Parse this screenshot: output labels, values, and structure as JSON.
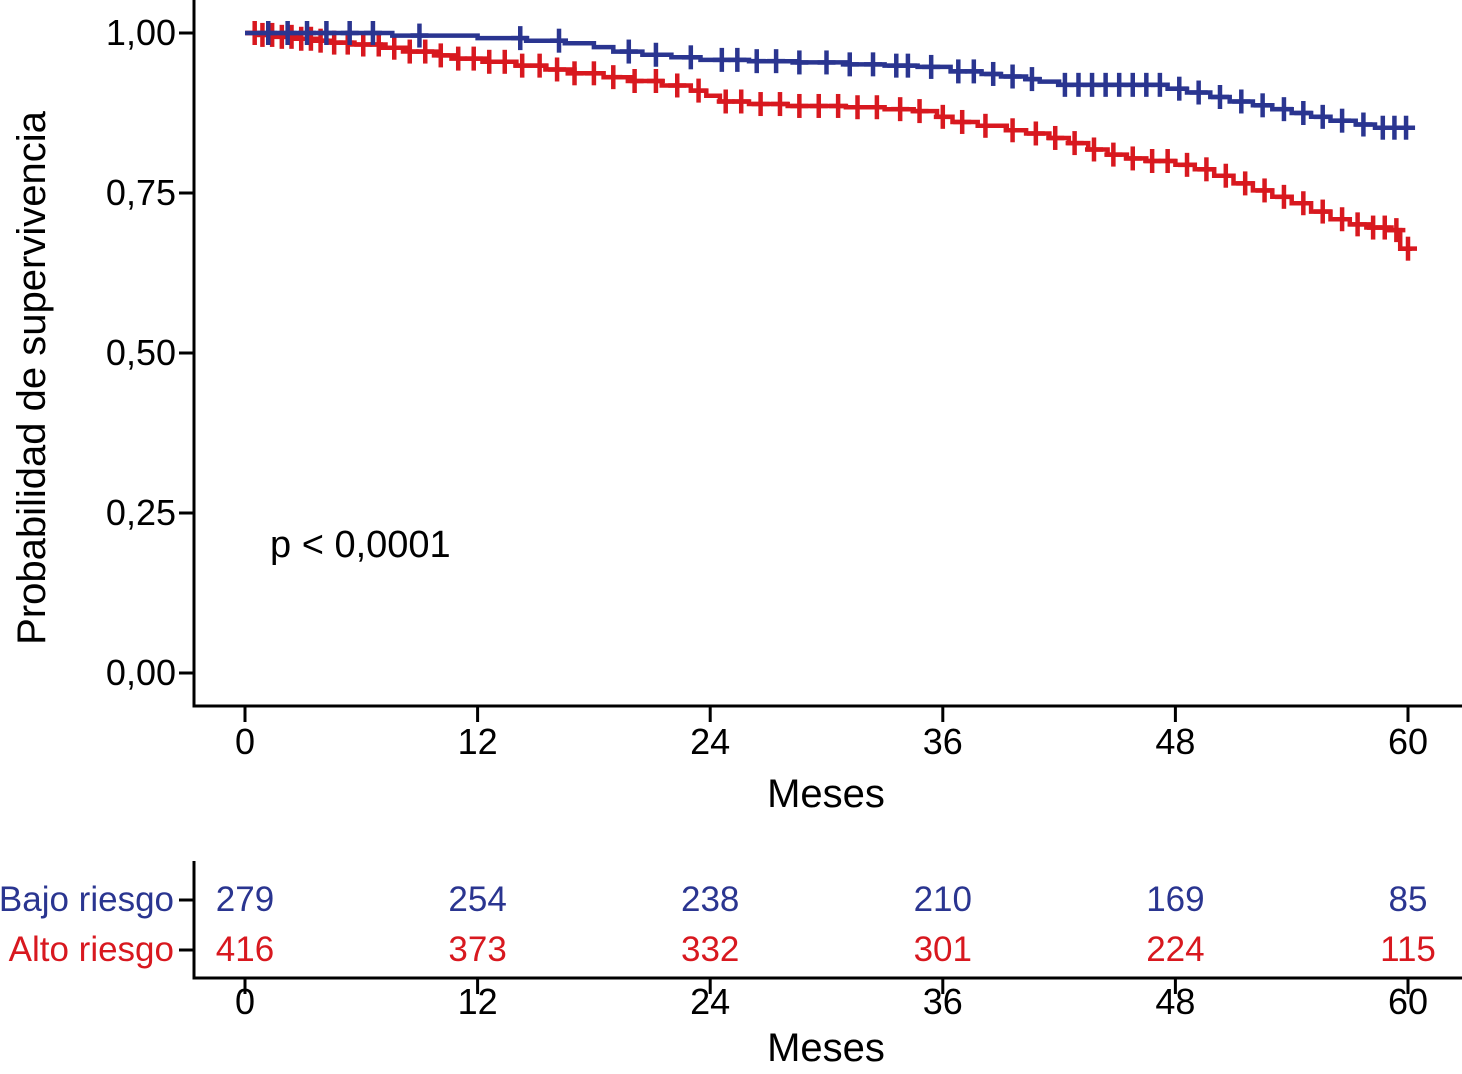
{
  "chart_data": {
    "type": "line",
    "subtype": "kaplan_meier_survival",
    "title": "",
    "annotation": "p < 0,0001",
    "grid": false,
    "legend_position": "none",
    "x_axis": {
      "label": "Meses",
      "ticks": [
        "0",
        "12",
        "24",
        "36",
        "48",
        "60"
      ],
      "tick_values": [
        0,
        12,
        24,
        36,
        48,
        60
      ],
      "range": [
        0,
        62
      ]
    },
    "y_axis": {
      "label": "Probabilidad de supervivencia",
      "ticks": [
        "0,00",
        "0,25",
        "0,50",
        "0,75",
        "1,00"
      ],
      "tick_values": [
        0,
        0.25,
        0.5,
        0.75,
        1.0
      ],
      "range": [
        0,
        1.05
      ]
    },
    "series": [
      {
        "name": "Alto riesgo",
        "color": "#D8181F",
        "steps": [
          [
            0,
            1.0
          ],
          [
            0.7,
            0.997
          ],
          [
            1.5,
            0.994
          ],
          [
            2.5,
            0.991
          ],
          [
            3.5,
            0.988
          ],
          [
            4.5,
            0.985
          ],
          [
            5.5,
            0.982
          ],
          [
            7,
            0.977
          ],
          [
            8.5,
            0.971
          ],
          [
            10,
            0.965
          ],
          [
            11,
            0.96
          ],
          [
            12.5,
            0.955
          ],
          [
            14,
            0.949
          ],
          [
            15.5,
            0.943
          ],
          [
            17,
            0.937
          ],
          [
            18.5,
            0.931
          ],
          [
            20,
            0.925
          ],
          [
            21.5,
            0.918
          ],
          [
            23,
            0.91
          ],
          [
            23.8,
            0.902
          ],
          [
            24.5,
            0.893
          ],
          [
            26,
            0.889
          ],
          [
            28,
            0.886
          ],
          [
            31,
            0.884
          ],
          [
            33,
            0.881
          ],
          [
            34.5,
            0.878
          ],
          [
            35.7,
            0.869
          ],
          [
            36.5,
            0.861
          ],
          [
            37.8,
            0.855
          ],
          [
            39.3,
            0.848
          ],
          [
            40.3,
            0.843
          ],
          [
            41.5,
            0.836
          ],
          [
            42.5,
            0.828
          ],
          [
            43.5,
            0.818
          ],
          [
            44.5,
            0.81
          ],
          [
            45.5,
            0.804
          ],
          [
            46.5,
            0.8
          ],
          [
            48,
            0.794
          ],
          [
            49,
            0.787
          ],
          [
            50,
            0.777
          ],
          [
            51,
            0.765
          ],
          [
            52,
            0.754
          ],
          [
            53,
            0.744
          ],
          [
            54,
            0.734
          ],
          [
            55,
            0.721
          ],
          [
            56,
            0.709
          ],
          [
            57,
            0.701
          ],
          [
            58,
            0.696
          ],
          [
            59,
            0.692
          ],
          [
            59.6,
            0.663
          ],
          [
            60.2,
            0.663
          ]
        ],
        "censor_months": [
          0.5,
          0.9,
          1.4,
          1.9,
          2.4,
          2.9,
          3.4,
          3.9,
          4.6,
          5.3,
          6.1,
          6.9,
          7.7,
          8.5,
          9.3,
          10.1,
          11.0,
          11.8,
          12.6,
          13.4,
          14.3,
          15.2,
          16.1,
          17.0,
          18.0,
          19.0,
          20.1,
          21.2,
          22.3,
          23.4,
          24.8,
          25.6,
          26.6,
          27.6,
          28.6,
          29.6,
          30.6,
          31.6,
          32.6,
          33.8,
          34.8,
          36.0,
          37.0,
          38.2,
          39.6,
          40.8,
          41.8,
          42.8,
          43.8,
          44.8,
          45.8,
          46.8,
          47.6,
          48.6,
          49.6,
          50.6,
          51.6,
          52.6,
          53.6,
          54.6,
          55.6,
          56.6,
          57.4,
          58.2,
          58.8,
          59.4,
          60.0
        ]
      },
      {
        "name": "Bajo riesgo",
        "color": "#2A3590",
        "steps": [
          [
            0,
            1.0
          ],
          [
            7.6,
            0.996
          ],
          [
            12,
            0.992
          ],
          [
            14.5,
            0.988
          ],
          [
            16.5,
            0.984
          ],
          [
            18,
            0.978
          ],
          [
            19,
            0.971
          ],
          [
            20.5,
            0.966
          ],
          [
            22,
            0.962
          ],
          [
            23.5,
            0.958
          ],
          [
            26,
            0.956
          ],
          [
            28.5,
            0.954
          ],
          [
            31,
            0.951
          ],
          [
            33,
            0.949
          ],
          [
            34.7,
            0.947
          ],
          [
            36.4,
            0.94
          ],
          [
            38,
            0.936
          ],
          [
            39,
            0.932
          ],
          [
            40.3,
            0.928
          ],
          [
            41,
            0.924
          ],
          [
            42,
            0.919
          ],
          [
            47.6,
            0.913
          ],
          [
            48.6,
            0.907
          ],
          [
            49.8,
            0.9
          ],
          [
            50.8,
            0.893
          ],
          [
            52,
            0.887
          ],
          [
            53,
            0.881
          ],
          [
            54,
            0.875
          ],
          [
            55,
            0.869
          ],
          [
            56,
            0.863
          ],
          [
            57.3,
            0.857
          ],
          [
            58.3,
            0.852
          ],
          [
            60.3,
            0.852
          ]
        ],
        "censor_months": [
          1.2,
          2.2,
          3.2,
          4.2,
          5.4,
          6.6,
          9.0,
          14.2,
          16.2,
          19.8,
          21.2,
          23.0,
          24.6,
          25.4,
          26.4,
          27.4,
          28.6,
          30.0,
          31.2,
          32.4,
          33.6,
          34.2,
          35.4,
          36.8,
          37.6,
          38.6,
          39.6,
          40.6,
          42.3,
          43.0,
          43.7,
          44.4,
          45.1,
          45.8,
          46.5,
          47.2,
          48.2,
          49.2,
          50.3,
          51.4,
          52.5,
          53.6,
          54.6,
          55.6,
          56.6,
          57.7,
          58.7,
          59.3,
          59.9
        ]
      }
    ],
    "number_at_risk": {
      "x_label": "Meses",
      "ticks": [
        "0",
        "12",
        "24",
        "36",
        "48",
        "60"
      ],
      "tick_values": [
        0,
        12,
        24,
        36,
        48,
        60
      ],
      "rows": [
        {
          "label": "Bajo riesgo",
          "color": "#2A3590",
          "counts": [
            279,
            254,
            238,
            210,
            169,
            85
          ]
        },
        {
          "label": "Alto riesgo",
          "color": "#D8181F",
          "counts": [
            416,
            373,
            332,
            301,
            224,
            115
          ]
        }
      ]
    }
  },
  "colors": {
    "low_risk_blue": "#2A3590",
    "high_risk_red": "#D8181F",
    "axis_black": "#000000"
  }
}
